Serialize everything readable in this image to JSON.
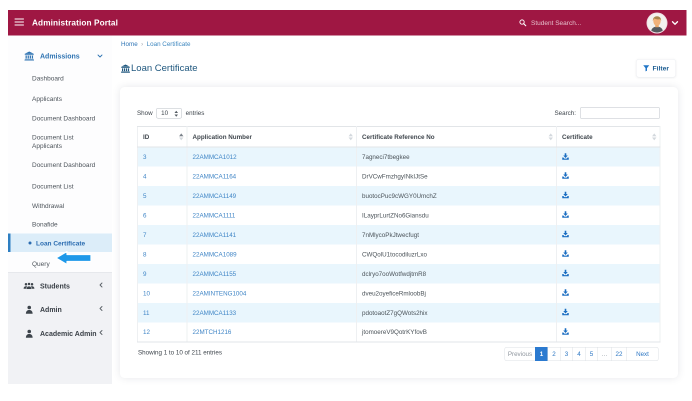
{
  "topbar": {
    "brand": "Administration Portal",
    "search_placeholder": "Student Search..."
  },
  "breadcrumb": {
    "home": "Home",
    "separator": "›",
    "current": "Loan Certificate"
  },
  "sidebar": {
    "groups": {
      "admissions": "Admissions",
      "students": "Students",
      "admin": "Admin",
      "academic_admin": "Academic Admin"
    },
    "admissions_items": [
      "Dashboard",
      "Applicants",
      "Document Dashboard",
      "Document List Applicants",
      "Document Dashboard",
      "Document List",
      "Withdrawal",
      "Bonafide",
      "Loan Certificate",
      "Query"
    ]
  },
  "page": {
    "title": "Loan Certificate",
    "filter_label": "Filter"
  },
  "controls": {
    "show_label": "Show",
    "page_length": "10",
    "entries_label": "entries",
    "search_label": "Search:"
  },
  "table": {
    "columns": [
      "ID",
      "Application Number",
      "Certificate Reference No",
      "Certificate"
    ],
    "rows": [
      {
        "id": "3",
        "application_number": "22AMMCA1012",
        "reference": "7agneci7tbegkee"
      },
      {
        "id": "4",
        "application_number": "22AMMCA1164",
        "reference": "DrVCwFmzhgyINkIJtSe"
      },
      {
        "id": "5",
        "application_number": "22AMMCA1149",
        "reference": "buotocPuc9cWGY0UmchZ"
      },
      {
        "id": "6",
        "application_number": "22AMMCA1111",
        "reference": "ILayprLurtZNo6Giansdu"
      },
      {
        "id": "7",
        "application_number": "22AMMCA1141",
        "reference": "7nMlycoPkJtwecfugt"
      },
      {
        "id": "8",
        "application_number": "22AMMCA1089",
        "reference": "CWQolU1tocodiluzrLxo"
      },
      {
        "id": "9",
        "application_number": "22AMMCA1155",
        "reference": "dclryo7ooWotfwdjtmR8"
      },
      {
        "id": "10",
        "application_number": "22AMINTENG1004",
        "reference": "dveu2oyeficeRmloobBj"
      },
      {
        "id": "11",
        "application_number": "22AMMCA1133",
        "reference": "pdotoaotZ7gQWots2hix"
      },
      {
        "id": "12",
        "application_number": "22MTCH1216",
        "reference": "jtomoereV9QotrKYfovB"
      }
    ]
  },
  "footer": {
    "info": "Showing 1 to 10 of 211 entries",
    "pagination": [
      "Previous",
      "1",
      "2",
      "3",
      "4",
      "5",
      "…",
      "22",
      "Next"
    ],
    "active_page": "1"
  },
  "colors": {
    "topbar": "#9f1743",
    "accent_blue": "#2e73b2",
    "link_blue": "#3f85c6",
    "active_page_bg": "#2b7ad0",
    "stripe": "#e9f6fd",
    "annotation_arrow": "#1e98e9"
  }
}
